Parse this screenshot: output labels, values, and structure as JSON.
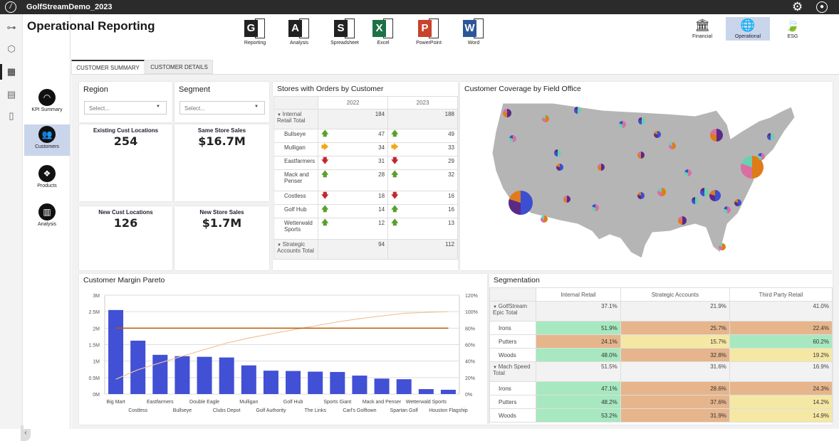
{
  "app": {
    "title": "GolfStreamDemo_2023",
    "icons": [
      "logo-icon",
      "gear-icon",
      "user-icon"
    ]
  },
  "rail": {
    "icons": [
      "hierarchy-icon",
      "cube-icon",
      "dashboard-icon",
      "document-icon",
      "carousel-icon"
    ]
  },
  "nav": {
    "items": [
      {
        "label": "KPI Summary",
        "icon": "gauge-icon"
      },
      {
        "label": "Customers",
        "icon": "users-icon",
        "active": true
      },
      {
        "label": "Products",
        "icon": "dropbox-icon"
      },
      {
        "label": "Analysis",
        "icon": "bar-chart-icon"
      }
    ]
  },
  "page": {
    "title": "Operational Reporting"
  },
  "tools": [
    {
      "label": "Reporting",
      "letter": "G",
      "color": "#222222"
    },
    {
      "label": "Analysis",
      "letter": "A",
      "color": "#222222"
    },
    {
      "label": "Spreadsheet",
      "letter": "S",
      "color": "#222222"
    },
    {
      "label": "Excel",
      "letter": "X",
      "color": "#1e7145"
    },
    {
      "label": "PowerPoint",
      "letter": "P",
      "color": "#c8432b"
    },
    {
      "label": "Word",
      "letter": "W",
      "color": "#2b579a"
    }
  ],
  "categories": [
    {
      "label": "Financial",
      "icon": "bank-icon"
    },
    {
      "label": "Operational",
      "icon": "globe-icon",
      "active": true
    },
    {
      "label": "ESG",
      "icon": "leaf-icon"
    }
  ],
  "tabs": [
    "CUSTOMER SUMMARY",
    "CUSTOMER DETAILS"
  ],
  "filters": {
    "region": {
      "label": "Region",
      "placeholder": "Select..."
    },
    "segment": {
      "label": "Segment",
      "placeholder": "Select..."
    }
  },
  "kpis": [
    {
      "label": "Existing Cust Locations",
      "value": "254"
    },
    {
      "label": "Same Store Sales",
      "value": "$16.7M"
    },
    {
      "label": "New Cust Locations",
      "value": "126"
    },
    {
      "label": "New Store Sales",
      "value": "$1.7M"
    }
  ],
  "stores": {
    "title": "Stores with Orders by Customer",
    "years": [
      "2022",
      "2023"
    ],
    "groups": [
      {
        "label": "Internal Retail Total",
        "values": [
          "184",
          "188"
        ],
        "rows": [
          {
            "name": "Bullseye",
            "v": [
              "47",
              "49"
            ],
            "t": [
              "up",
              "up"
            ]
          },
          {
            "name": "Mulligan",
            "v": [
              "34",
              "33"
            ],
            "t": [
              "flat",
              "flat"
            ]
          },
          {
            "name": "Eastfarmers",
            "v": [
              "31",
              "29"
            ],
            "t": [
              "down",
              "down"
            ]
          },
          {
            "name": "Mack and Penser",
            "v": [
              "28",
              "32"
            ],
            "t": [
              "up",
              "up"
            ]
          },
          {
            "name": "Costless",
            "v": [
              "18",
              "16"
            ],
            "t": [
              "down",
              "down"
            ]
          },
          {
            "name": "Golf Hub",
            "v": [
              "14",
              "16"
            ],
            "t": [
              "up",
              "up"
            ]
          },
          {
            "name": "Wetterwald Sports",
            "v": [
              "12",
              "13"
            ],
            "t": [
              "up",
              "up"
            ]
          }
        ]
      },
      {
        "label": "Strategic Accounts Total",
        "values": [
          "94",
          "112"
        ]
      }
    ]
  },
  "map": {
    "title": "Customer Coverage by Field Office"
  },
  "chart_data": {
    "type": "bar",
    "title": "Customer Margin Pareto",
    "categories": [
      "Big Mart",
      "Costless",
      "Eastfarmers",
      "Bullseye",
      "Double Eagle",
      "Clubs Depot",
      "Mulligan",
      "Golf Authority",
      "Golf Hub",
      "The Links",
      "Sports Giant",
      "Carl's Golftown",
      "Mack and Penser",
      "Spartan Golf",
      "Wetterwald Sports",
      "Houston Flagship"
    ],
    "series": [
      {
        "type": "bar",
        "axis": "left",
        "values": [
          2.55,
          1.62,
          1.19,
          1.15,
          1.13,
          1.11,
          0.87,
          0.71,
          0.7,
          0.68,
          0.67,
          0.56,
          0.47,
          0.45,
          0.15,
          0.13
        ],
        "color": "#4150d4"
      },
      {
        "type": "line",
        "axis": "right",
        "values": [
          18,
          29.5,
          37.9,
          46,
          54,
          61.9,
          68,
          73,
          78,
          82.8,
          87.6,
          91.5,
          94.8,
          98,
          99.1,
          100
        ],
        "color": "#f0c49a"
      },
      {
        "type": "line",
        "axis": "right",
        "values": [
          80,
          80,
          80,
          80,
          80,
          80,
          80,
          80,
          80,
          80,
          80,
          80,
          80,
          80,
          80,
          80
        ],
        "color": "#b85a00"
      }
    ],
    "ylim": [
      0,
      3
    ],
    "y2lim": [
      0,
      120
    ],
    "yticks": [
      "0M",
      "0.5M",
      "1M",
      "1.5M",
      "2M",
      "2.5M",
      "3M"
    ],
    "y2ticks": [
      "0%",
      "20%",
      "40%",
      "60%",
      "80%",
      "100%",
      "120%"
    ],
    "grid": true
  },
  "segmentation": {
    "title": "Segmentation",
    "columns": [
      "Internal Retail",
      "Strategic Accounts",
      "Third Party Retail"
    ],
    "groups": [
      {
        "label": "GolfStream Epic Total",
        "values": [
          "37.1%",
          "21.9%",
          "41.0%"
        ],
        "rows": [
          {
            "name": "Irons",
            "v": [
              "51.9%",
              "25.7%",
              "22.4%"
            ],
            "c": [
              "g",
              "o",
              "o"
            ]
          },
          {
            "name": "Putters",
            "v": [
              "24.1%",
              "15.7%",
              "60.2%"
            ],
            "c": [
              "o",
              "y",
              "g"
            ]
          },
          {
            "name": "Woods",
            "v": [
              "48.0%",
              "32.8%",
              "19.2%"
            ],
            "c": [
              "g",
              "o",
              "y"
            ]
          }
        ]
      },
      {
        "label": "Mach Speed Total",
        "values": [
          "51.5%",
          "31.6%",
          "16.9%"
        ],
        "rows": [
          {
            "name": "Irons",
            "v": [
              "47.1%",
              "28.6%",
              "24.3%"
            ],
            "c": [
              "g",
              "o",
              "o"
            ]
          },
          {
            "name": "Putters",
            "v": [
              "48.2%",
              "37.6%",
              "14.2%"
            ],
            "c": [
              "g",
              "o",
              "y"
            ]
          },
          {
            "name": "Woods",
            "v": [
              "53.2%",
              "31.9%",
              "14.9%"
            ],
            "c": [
              "g",
              "o",
              "y"
            ]
          }
        ]
      }
    ],
    "colors": {
      "g": "#a7e8c0",
      "o": "#e6b58c",
      "y": "#f5e8a4"
    }
  }
}
